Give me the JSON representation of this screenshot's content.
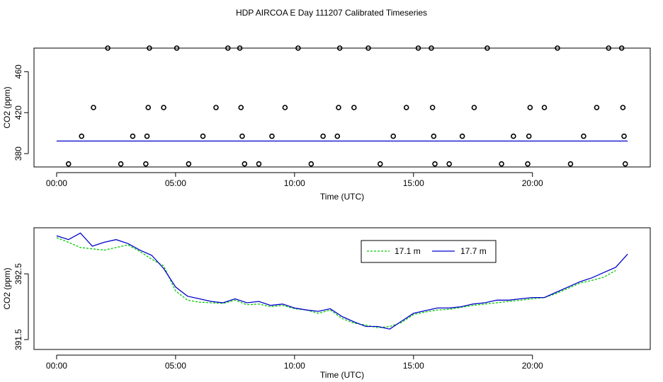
{
  "figure": {
    "title": "HDP AIRCOA E  Day 111207  Calibrated Timeseries"
  },
  "chart_data": [
    {
      "type": "scatter",
      "xlabel": "Time (UTC)",
      "ylabel": "CO2 (ppm)",
      "xticks": [
        "00:00",
        "05:00",
        "10:00",
        "15:00",
        "20:00"
      ],
      "xtick_hours": [
        0,
        5,
        10,
        15,
        20
      ],
      "yticks": [
        "380",
        "420",
        "460"
      ],
      "ytick_values": [
        380,
        420,
        460
      ],
      "xlim": [
        -0.95,
        24.95
      ],
      "ylim": [
        367,
        483
      ],
      "grid": false,
      "colors": {
        "points": "#000000",
        "line": "#0000cc"
      },
      "points_x": [
        0.5,
        1.05,
        1.55,
        2.15,
        2.7,
        3.2,
        3.75,
        3.8,
        3.85,
        3.9,
        4.5,
        5.05,
        5.55,
        6.15,
        6.7,
        7.2,
        7.7,
        7.75,
        7.8,
        7.9,
        8.5,
        9.05,
        9.6,
        10.15,
        10.7,
        11.2,
        11.8,
        11.85,
        11.9,
        12.5,
        13.1,
        13.6,
        14.15,
        14.7,
        15.2,
        15.75,
        15.8,
        15.85,
        15.9,
        16.5,
        17.05,
        17.55,
        18.1,
        18.7,
        19.2,
        19.8,
        19.85,
        19.9,
        20.5,
        21.05,
        21.6,
        22.15,
        22.7,
        23.2,
        23.75,
        23.8,
        23.85,
        23.9
      ],
      "points_y": [
        370,
        397,
        425,
        483,
        370,
        397,
        370,
        397,
        425,
        483,
        425,
        483,
        370,
        397,
        425,
        483,
        483,
        425,
        397,
        370,
        370,
        397,
        425,
        483,
        370,
        397,
        397,
        425,
        483,
        425,
        483,
        370,
        397,
        425,
        483,
        483,
        425,
        397,
        370,
        370,
        397,
        425,
        483,
        370,
        397,
        370,
        397,
        425,
        425,
        483,
        370,
        397,
        425,
        483,
        483,
        425,
        397,
        370
      ],
      "series": [
        {
          "x": [
            0,
            24
          ],
          "y": [
            392.3,
            392.3
          ]
        }
      ]
    },
    {
      "type": "line",
      "xlabel": "Time (UTC)",
      "ylabel": "CO2 (ppm)",
      "xticks": [
        "00:00",
        "05:00",
        "10:00",
        "15:00",
        "20:00"
      ],
      "xtick_hours": [
        0,
        5,
        10,
        15,
        20
      ],
      "yticks": [
        "391.5",
        "392.5"
      ],
      "ytick_values": [
        391.5,
        392.5
      ],
      "xlim": [
        -0.95,
        24.95
      ],
      "ylim": [
        391.35,
        393.2
      ],
      "grid": false,
      "legend_position": "top-right",
      "series": [
        {
          "name": "17.1 m",
          "color": "#00cc00",
          "dashed": true,
          "x": [
            0,
            0.5,
            1,
            1.5,
            2,
            2.5,
            3,
            3.5,
            4,
            4.5,
            5,
            5.5,
            6,
            6.5,
            7,
            7.5,
            8,
            8.5,
            9,
            9.5,
            10,
            10.5,
            11,
            11.5,
            12,
            12.5,
            13,
            13.5,
            14,
            14.5,
            15,
            15.5,
            16,
            16.5,
            17,
            17.5,
            18,
            18.5,
            19,
            19.5,
            20,
            20.5,
            21,
            21.5,
            22,
            22.5,
            23,
            23.5
          ],
          "y": [
            393.05,
            392.98,
            392.9,
            392.88,
            392.86,
            392.9,
            392.94,
            392.84,
            392.72,
            392.62,
            392.24,
            392.1,
            392.07,
            392.06,
            392.05,
            392.1,
            392.03,
            392.04,
            392.0,
            392.02,
            391.97,
            391.95,
            391.9,
            391.95,
            391.82,
            391.75,
            391.72,
            391.68,
            391.7,
            391.76,
            391.88,
            391.92,
            391.95,
            391.96,
            391.99,
            392.02,
            392.04,
            392.06,
            392.08,
            392.1,
            392.12,
            392.14,
            392.2,
            392.28,
            392.36,
            392.4,
            392.45,
            392.55
          ]
        },
        {
          "name": "17.7 m",
          "color": "#0000cc",
          "dashed": false,
          "x": [
            0,
            0.5,
            1,
            1.5,
            2,
            2.5,
            3,
            3.5,
            4,
            4.5,
            5,
            5.5,
            6,
            6.5,
            7,
            7.5,
            8,
            8.5,
            9,
            9.5,
            10,
            10.5,
            11,
            11.5,
            12,
            12.5,
            13,
            13.5,
            14,
            14.5,
            15,
            15.5,
            16,
            16.5,
            17,
            17.5,
            18,
            18.5,
            19,
            19.5,
            20,
            20.5,
            21,
            21.5,
            22,
            22.5,
            23,
            23.5,
            24
          ],
          "y": [
            393.08,
            393.02,
            393.12,
            392.92,
            392.98,
            393.02,
            392.96,
            392.86,
            392.78,
            392.58,
            392.3,
            392.16,
            392.12,
            392.08,
            392.06,
            392.12,
            392.06,
            392.08,
            392.02,
            392.04,
            391.98,
            391.95,
            391.93,
            391.97,
            391.85,
            391.77,
            391.7,
            391.7,
            391.66,
            391.78,
            391.9,
            391.94,
            391.98,
            391.98,
            392.0,
            392.04,
            392.06,
            392.1,
            392.1,
            392.12,
            392.14,
            392.14,
            392.22,
            392.3,
            392.38,
            392.44,
            392.52,
            392.6,
            392.8
          ]
        }
      ]
    }
  ]
}
